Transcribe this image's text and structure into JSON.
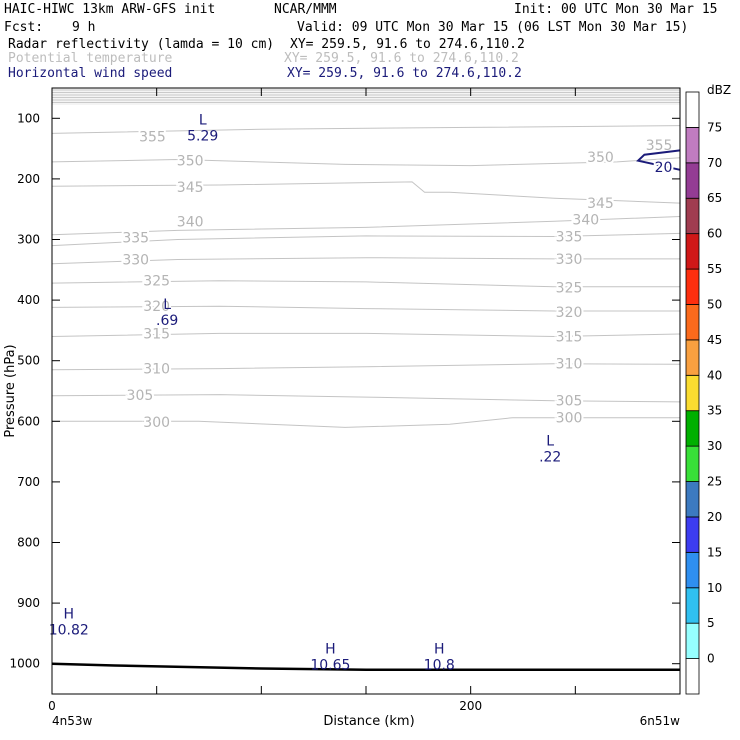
{
  "header": {
    "model": "HAIC-HIWC 13km ARW-GFS init",
    "org": "NCAR/MMM",
    "init": "Init: 00 UTC Mon 30 Mar 15",
    "fcst_label": "Fcst:",
    "fcst_value": "9 h",
    "valid": "Valid: 09 UTC Mon 30 Mar 15 (06 LST Mon 30 Mar 15)",
    "fields": [
      {
        "name": "Radar reflectivity (lamda = 10 cm)",
        "xy": "XY= 259.5, 91.6 to 274.6,110.2",
        "color": "#000000"
      },
      {
        "name": "Potential temperature",
        "xy": "XY= 259.5, 91.6 to 274.6,110.2",
        "color": "#bdbdbd"
      },
      {
        "name": "Horizontal wind speed",
        "xy": "XY= 259.5, 91.6 to 274.6,110.2",
        "color": "#1b1b7a"
      }
    ]
  },
  "chart_data": {
    "type": "cross-section contour",
    "ylabel": "Pressure (hPa)",
    "xlabel": "Distance (km)",
    "x_ticks": [
      "0",
      "200"
    ],
    "x_tick_values": [
      0,
      200
    ],
    "xlim": [
      0,
      300
    ],
    "x_end_labels": [
      "4n53w",
      "6n51w"
    ],
    "y_ticks": [
      "100",
      "200",
      "300",
      "400",
      "500",
      "600",
      "700",
      "800",
      "900",
      "1000"
    ],
    "ylim": [
      50,
      1050
    ],
    "theta_contours": [
      {
        "label": "355",
        "points": [
          [
            0,
            125
          ],
          [
            100,
            118
          ],
          [
            200,
            115
          ],
          [
            300,
            112
          ]
        ],
        "label_at": [
          [
            48,
            130
          ],
          [
            290,
            144
          ]
        ]
      },
      {
        "label": "350",
        "points": [
          [
            0,
            172
          ],
          [
            60,
            168
          ],
          [
            140,
            176
          ],
          [
            200,
            178
          ],
          [
            270,
            172
          ],
          [
            300,
            165
          ]
        ],
        "label_at": [
          [
            66,
            170
          ],
          [
            262,
            164
          ]
        ]
      },
      {
        "label": "345",
        "points": [
          [
            0,
            212
          ],
          [
            80,
            210
          ],
          [
            172,
            205
          ],
          [
            178,
            222
          ],
          [
            190,
            222
          ],
          [
            240,
            232
          ],
          [
            300,
            240
          ]
        ],
        "label_at": [
          [
            66,
            213
          ],
          [
            262,
            240
          ]
        ]
      },
      {
        "label": "340",
        "points": [
          [
            0,
            292
          ],
          [
            60,
            285
          ],
          [
            150,
            280
          ],
          [
            240,
            270
          ],
          [
            300,
            262
          ]
        ],
        "label_at": [
          [
            66,
            270
          ],
          [
            255,
            267
          ]
        ]
      },
      {
        "label": "335",
        "points": [
          [
            0,
            310
          ],
          [
            60,
            300
          ],
          [
            150,
            294
          ],
          [
            240,
            295
          ],
          [
            300,
            290
          ]
        ],
        "label_at": [
          [
            40,
            297
          ],
          [
            247,
            295
          ]
        ]
      },
      {
        "label": "330",
        "points": [
          [
            0,
            340
          ],
          [
            60,
            333
          ],
          [
            150,
            330
          ],
          [
            240,
            332
          ],
          [
            300,
            332
          ]
        ],
        "label_at": [
          [
            40,
            333
          ],
          [
            247,
            332
          ]
        ]
      },
      {
        "label": "325",
        "points": [
          [
            0,
            372
          ],
          [
            80,
            368
          ],
          [
            150,
            370
          ],
          [
            240,
            378
          ],
          [
            300,
            378
          ]
        ],
        "label_at": [
          [
            50,
            368
          ],
          [
            247,
            379
          ]
        ]
      },
      {
        "label": "320",
        "points": [
          [
            0,
            412
          ],
          [
            80,
            410
          ],
          [
            150,
            414
          ],
          [
            240,
            418
          ],
          [
            300,
            418
          ]
        ],
        "label_at": [
          [
            50,
            410
          ],
          [
            247,
            420
          ]
        ]
      },
      {
        "label": "315",
        "points": [
          [
            0,
            460
          ],
          [
            80,
            455
          ],
          [
            150,
            455
          ],
          [
            240,
            460
          ],
          [
            300,
            456
          ]
        ],
        "label_at": [
          [
            50,
            455
          ],
          [
            247,
            460
          ]
        ]
      },
      {
        "label": "310",
        "points": [
          [
            0,
            515
          ],
          [
            80,
            513
          ],
          [
            150,
            510
          ],
          [
            240,
            505
          ],
          [
            300,
            506
          ]
        ],
        "label_at": [
          [
            50,
            513
          ],
          [
            247,
            505
          ]
        ]
      },
      {
        "label": "305",
        "points": [
          [
            0,
            558
          ],
          [
            80,
            556
          ],
          [
            150,
            560
          ],
          [
            240,
            566
          ],
          [
            300,
            568
          ]
        ],
        "label_at": [
          [
            42,
            557
          ],
          [
            247,
            566
          ]
        ]
      },
      {
        "label": "300",
        "points": [
          [
            0,
            600
          ],
          [
            70,
            600
          ],
          [
            140,
            610
          ],
          [
            190,
            605
          ],
          [
            220,
            594
          ],
          [
            300,
            594
          ]
        ],
        "label_at": [
          [
            50,
            601
          ],
          [
            247,
            594
          ]
        ]
      }
    ],
    "wind_contours": [
      {
        "label": "20",
        "points": [
          [
            300,
            153
          ],
          [
            283,
            160
          ],
          [
            280,
            170
          ],
          [
            300,
            185
          ]
        ],
        "label_at": [
          [
            295,
            180
          ]
        ]
      }
    ],
    "extrema": [
      {
        "kind": "L",
        "value": "5.29",
        "x": 72,
        "p": 115
      },
      {
        "kind": "L",
        "value": ".69",
        "x": 55,
        "p": 420
      },
      {
        "kind": "L",
        "value": ".22",
        "x": 238,
        "p": 645
      },
      {
        "kind": "H",
        "value": "10.82",
        "x": 8,
        "p": 930
      },
      {
        "kind": "H",
        "value": "10.65",
        "x": 133,
        "p": 988
      },
      {
        "kind": "H",
        "value": "10.8",
        "x": 185,
        "p": 988
      }
    ],
    "terrain_p": [
      [
        0,
        1000
      ],
      [
        30,
        1003
      ],
      [
        100,
        1008
      ],
      [
        150,
        1010
      ],
      [
        300,
        1010
      ]
    ],
    "missing_top_p": 78,
    "colorbar": {
      "unit": "dBZ",
      "levels": [
        "0",
        "5",
        "10",
        "15",
        "20",
        "25",
        "30",
        "35",
        "40",
        "45",
        "50",
        "55",
        "60",
        "65",
        "70",
        "75"
      ],
      "colors": [
        "#ffffff",
        "#96ffff",
        "#30c0f0",
        "#2f8ff0",
        "#3c3cf0",
        "#3c7ac0",
        "#38e038",
        "#00b000",
        "#fadc30",
        "#f9a040",
        "#fb6a1c",
        "#fd2f0f",
        "#d01818",
        "#a03c50",
        "#943c94",
        "#c07cc0",
        "#ffffff"
      ]
    }
  }
}
